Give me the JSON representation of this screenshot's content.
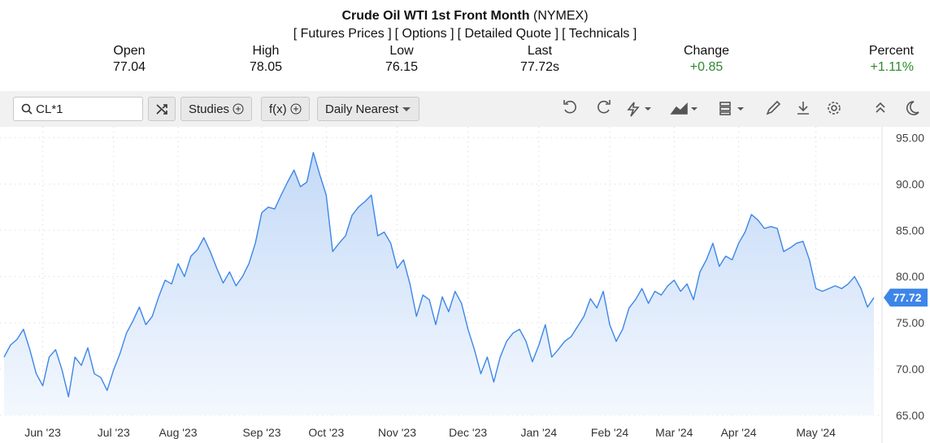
{
  "header": {
    "title": "Crude Oil WTI 1st Front Month",
    "exchange": "(NYMEX)",
    "links": [
      "[ Futures Prices ]",
      "[ Options ]",
      "[ Detailed Quote ]",
      "[ Technicals ]"
    ]
  },
  "quote": [
    {
      "label": "Open",
      "value": "77.04"
    },
    {
      "label": "High",
      "value": "78.05"
    },
    {
      "label": "Low",
      "value": "76.15"
    },
    {
      "label": "Last",
      "value": "77.72s"
    },
    {
      "label": "Change",
      "value": "+0.85"
    },
    {
      "label": "Percent",
      "value": "+1.11%"
    }
  ],
  "toolbar": {
    "symbol": "CL*1",
    "studies": "Studies",
    "fx": "f(x)",
    "period": "Daily Nearest"
  },
  "chart_data": {
    "type": "line",
    "color": "#3d86e8",
    "grid": true,
    "categories": [
      null,
      null,
      null,
      null,
      null,
      null,
      "Jun '23",
      null,
      null,
      null,
      null,
      null,
      null,
      null,
      null,
      null,
      null,
      "Jul '23",
      null,
      null,
      null,
      null,
      null,
      null,
      null,
      null,
      null,
      "Aug '23",
      null,
      null,
      null,
      null,
      null,
      null,
      null,
      null,
      null,
      null,
      null,
      null,
      "Sep '23",
      null,
      null,
      null,
      null,
      null,
      null,
      null,
      null,
      null,
      "Oct '23",
      null,
      null,
      null,
      null,
      null,
      null,
      null,
      null,
      null,
      null,
      "Nov '23",
      null,
      null,
      null,
      null,
      null,
      null,
      null,
      null,
      null,
      null,
      "Dec '23",
      null,
      null,
      null,
      null,
      null,
      null,
      null,
      null,
      null,
      null,
      "Jan '24",
      null,
      null,
      null,
      null,
      null,
      null,
      null,
      null,
      null,
      null,
      "Feb '24",
      null,
      null,
      null,
      null,
      null,
      null,
      null,
      null,
      null,
      "Mar '24",
      null,
      null,
      null,
      null,
      null,
      null,
      null,
      null,
      null,
      "Apr '24",
      null,
      null,
      null,
      null,
      null,
      null,
      null,
      null,
      null,
      null,
      null,
      "May '24",
      null,
      null,
      null,
      null,
      null,
      null,
      null,
      null,
      null
    ],
    "values": [
      71.3,
      72.6,
      73.2,
      74.3,
      72.1,
      69.5,
      68.2,
      71.3,
      72.1,
      69.9,
      67.0,
      71.3,
      70.4,
      72.3,
      69.5,
      69.1,
      67.7,
      69.9,
      71.7,
      73.9,
      75.2,
      76.7,
      74.8,
      75.7,
      77.8,
      79.6,
      79.2,
      81.4,
      80.0,
      82.2,
      82.9,
      84.2,
      82.7,
      80.9,
      79.3,
      80.5,
      79.0,
      80.0,
      81.4,
      83.6,
      86.9,
      87.5,
      87.3,
      88.8,
      90.2,
      91.5,
      89.7,
      90.2,
      93.4,
      91.0,
      88.8,
      82.7,
      83.6,
      84.4,
      86.6,
      87.5,
      88.1,
      88.8,
      84.4,
      84.8,
      83.6,
      80.9,
      81.8,
      79.2,
      75.7,
      78.0,
      77.5,
      74.8,
      77.8,
      76.2,
      78.4,
      77.1,
      74.3,
      72.1,
      69.5,
      71.3,
      68.6,
      71.3,
      73.0,
      73.9,
      74.3,
      73.0,
      70.8,
      72.6,
      74.8,
      71.3,
      72.1,
      73.0,
      73.5,
      74.6,
      75.7,
      77.6,
      76.6,
      78.4,
      74.8,
      73.0,
      74.3,
      76.6,
      77.5,
      78.7,
      77.1,
      78.4,
      78.0,
      79.0,
      79.6,
      78.4,
      79.2,
      77.5,
      80.5,
      81.8,
      83.6,
      81.1,
      82.2,
      81.8,
      83.6,
      84.8,
      86.7,
      86.1,
      85.2,
      85.4,
      85.2,
      82.7,
      83.1,
      83.6,
      83.8,
      81.8,
      78.7,
      78.4,
      78.7,
      79.0,
      78.7,
      79.2,
      80.0,
      78.7,
      76.7,
      77.72
    ],
    "ylim": [
      65,
      96
    ],
    "yticks": [
      {
        "value": 65,
        "label": "65.00"
      },
      {
        "value": 70,
        "label": "70.00"
      },
      {
        "value": 75,
        "label": "75.00"
      },
      {
        "value": 80,
        "label": "80.00"
      },
      {
        "value": 85,
        "label": "85.00"
      },
      {
        "value": 90,
        "label": "90.00"
      },
      {
        "value": 95,
        "label": "95.00"
      }
    ]
  }
}
